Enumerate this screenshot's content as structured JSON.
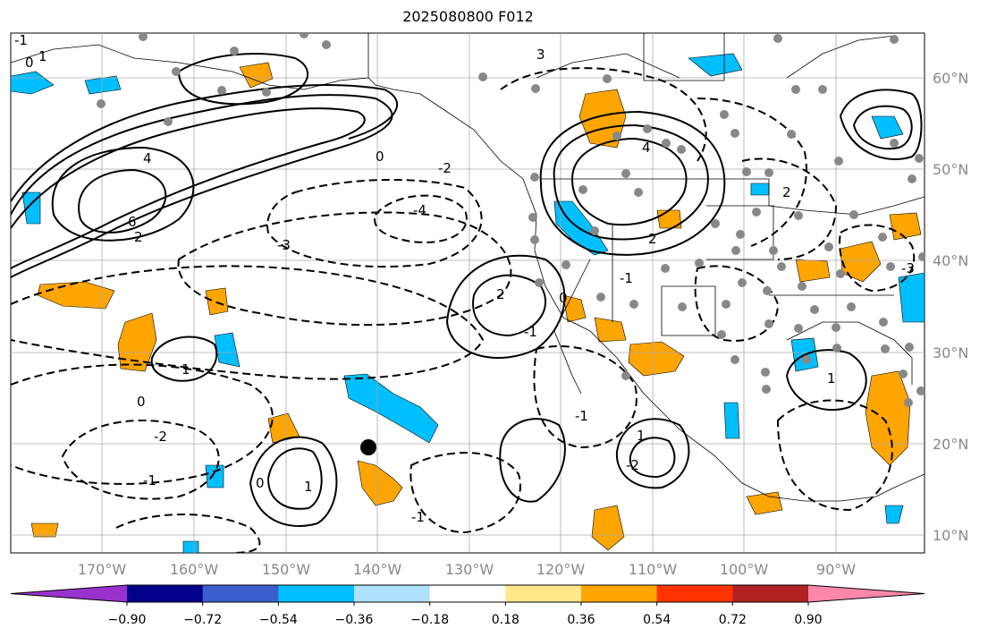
{
  "title": "2025080800 F012",
  "map": {
    "lon_labels": [
      "170°W",
      "160°W",
      "150°W",
      "140°W",
      "130°W",
      "120°W",
      "110°W",
      "100°W",
      "90°W"
    ],
    "lat_labels": [
      "60°N",
      "50°N",
      "40°N",
      "30°N",
      "20°N",
      "10°N"
    ],
    "contour_labels": [
      "-1",
      "0",
      "1",
      "4",
      "6",
      "2",
      "-3",
      "-4",
      "-2",
      "2",
      "4",
      "2",
      "-1",
      "0",
      "-1",
      "0",
      "1",
      "-2",
      "-1",
      "1",
      "-1",
      "0",
      "3",
      "2",
      "1",
      "-2",
      "-1",
      "1",
      "0",
      "-3"
    ],
    "marker": "storm-center-dot"
  },
  "colorbar": {
    "ticks": [
      "−0.90",
      "−0.72",
      "−0.54",
      "−0.36",
      "−0.18",
      "0.18",
      "0.36",
      "0.54",
      "0.72",
      "0.90"
    ],
    "colors": [
      "#9932cc",
      "#00008b",
      "#3a5fcd",
      "#00bfff",
      "#b0e2ff",
      "#ffffff",
      "#ffe78a",
      "#ffa500",
      "#ff3300",
      "#b22222",
      "#ff88aa"
    ]
  }
}
